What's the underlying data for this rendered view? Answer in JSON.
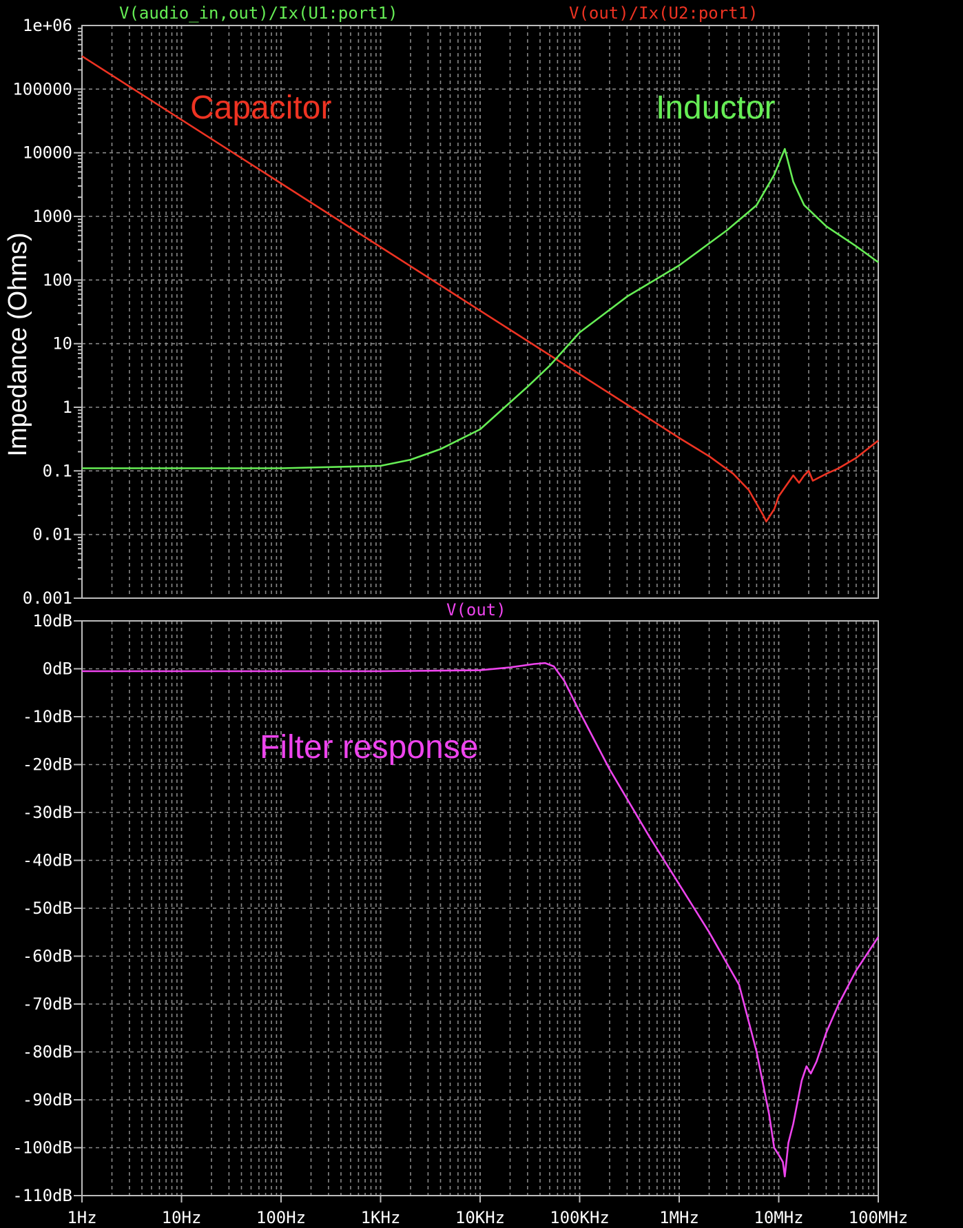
{
  "chart_data": [
    {
      "type": "line",
      "panel": "top",
      "ylabel": "Impedance (Ohms)",
      "yscale": "log",
      "xscale": "log",
      "xlim": [
        1,
        100000000
      ],
      "ylim": [
        0.001,
        1000000
      ],
      "yticks": [
        "1e+06",
        "100000",
        "10000",
        "1000",
        "100",
        "10",
        "1",
        "0.1",
        "0.01",
        "0.001"
      ],
      "grid": true,
      "series": [
        {
          "name": "V(audio_in,out)/Ix(U1:port1)",
          "color": "#66ee55",
          "annotation": "Inductor",
          "points": [
            [
              1,
              0.11
            ],
            [
              100,
              0.11
            ],
            [
              1000,
              0.12
            ],
            [
              2000,
              0.15
            ],
            [
              4000,
              0.22
            ],
            [
              10000,
              0.45
            ],
            [
              30000,
              2.1
            ],
            [
              50000,
              4.5
            ],
            [
              100000,
              15
            ],
            [
              300000,
              55
            ],
            [
              1000000,
              170
            ],
            [
              3000000,
              600
            ],
            [
              6000000,
              1500
            ],
            [
              9000000,
              4500
            ],
            [
              11500000,
              11500
            ],
            [
              14000000,
              3500
            ],
            [
              18000000,
              1500
            ],
            [
              30000000,
              700
            ],
            [
              60000000,
              340
            ],
            [
              100000000,
              190
            ]
          ]
        },
        {
          "name": "V(out)/Ix(U2:port1)",
          "color": "#ee3322",
          "annotation": "Capacitor",
          "points": [
            [
              1,
              330000
            ],
            [
              10,
              33000
            ],
            [
              100,
              3300
            ],
            [
              1000,
              330
            ],
            [
              10000,
              33
            ],
            [
              100000,
              3.3
            ],
            [
              1000000,
              0.33
            ],
            [
              2000000,
              0.17
            ],
            [
              3500000,
              0.09
            ],
            [
              5000000,
              0.05
            ],
            [
              7000000,
              0.02
            ],
            [
              7500000,
              0.016
            ],
            [
              9000000,
              0.025
            ],
            [
              10000000,
              0.04
            ],
            [
              12000000,
              0.06
            ],
            [
              14000000,
              0.085
            ],
            [
              16000000,
              0.065
            ],
            [
              18000000,
              0.085
            ],
            [
              20000000,
              0.1
            ],
            [
              22000000,
              0.07
            ],
            [
              30000000,
              0.09
            ],
            [
              40000000,
              0.11
            ],
            [
              60000000,
              0.16
            ],
            [
              100000000,
              0.3
            ]
          ]
        }
      ]
    },
    {
      "type": "line",
      "panel": "bottom",
      "xscale": "log",
      "xlim": [
        1,
        100000000
      ],
      "ylim": [
        -110,
        10
      ],
      "xticks": [
        "1Hz",
        "10Hz",
        "100Hz",
        "1KHz",
        "10KHz",
        "100KHz",
        "1MHz",
        "10MHz",
        "100MHz"
      ],
      "yticks": [
        "10dB",
        "0dB",
        "-10dB",
        "-20dB",
        "-30dB",
        "-40dB",
        "-50dB",
        "-60dB",
        "-70dB",
        "-80dB",
        "-90dB",
        "-100dB",
        "-110dB"
      ],
      "grid": true,
      "series": [
        {
          "name": "V(out)",
          "color": "#ee44ee",
          "annotation": "Filter response",
          "points": [
            [
              1,
              -0.5
            ],
            [
              1000,
              -0.5
            ],
            [
              10000,
              -0.3
            ],
            [
              20000,
              0.3
            ],
            [
              35000,
              1.0
            ],
            [
              45000,
              1.2
            ],
            [
              55000,
              0.5
            ],
            [
              70000,
              -2.5
            ],
            [
              100000,
              -9
            ],
            [
              200000,
              -21
            ],
            [
              500000,
              -35
            ],
            [
              1000000,
              -45
            ],
            [
              2000000,
              -55
            ],
            [
              4000000,
              -66
            ],
            [
              6000000,
              -80
            ],
            [
              8000000,
              -93
            ],
            [
              9000000,
              -100
            ],
            [
              10000000,
              -101.5
            ],
            [
              11000000,
              -103
            ],
            [
              11500000,
              -106
            ],
            [
              12500000,
              -99
            ],
            [
              14000000,
              -95
            ],
            [
              17000000,
              -86
            ],
            [
              19000000,
              -83
            ],
            [
              21000000,
              -84.5
            ],
            [
              24000000,
              -82
            ],
            [
              30000000,
              -76
            ],
            [
              40000000,
              -70
            ],
            [
              60000000,
              -63
            ],
            [
              100000000,
              -56
            ]
          ]
        }
      ]
    }
  ]
}
